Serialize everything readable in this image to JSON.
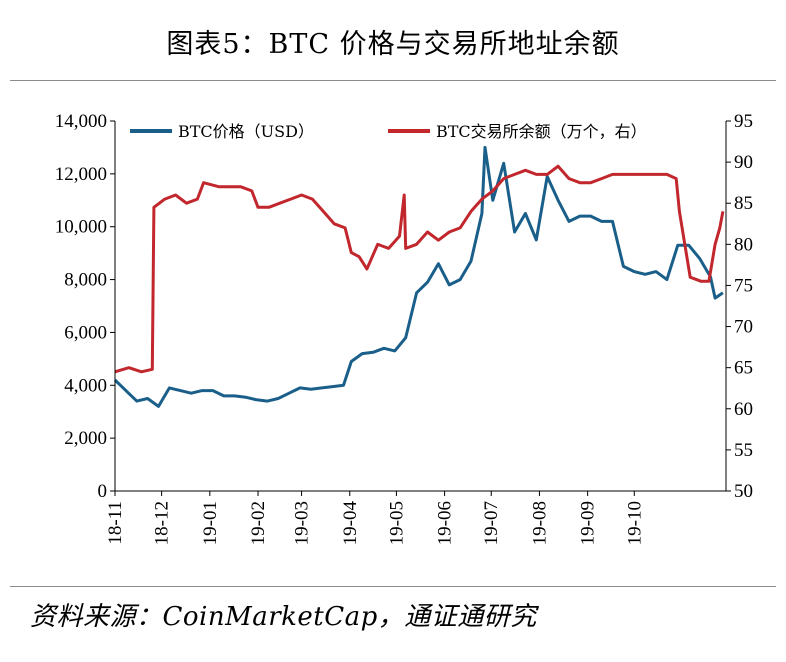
{
  "header": {
    "title": "图表5：BTC 价格与交易所地址余额"
  },
  "footer": {
    "source": "资料来源：CoinMarketCap，通证通研究"
  },
  "colors": {
    "price": "#1a5f8a",
    "balance": "#c1272d",
    "axis": "#000000"
  },
  "chart_data": {
    "type": "line",
    "title": "图表5：BTC 价格与交易所地址余额",
    "x_tick_labels": [
      "18-11",
      "18-12",
      "19-01",
      "19-02",
      "19-03",
      "19-04",
      "19-05",
      "19-06",
      "19-07",
      "19-08",
      "19-09",
      "19-10"
    ],
    "ylim_left": [
      0,
      14000
    ],
    "yticks_left": [
      "0",
      "2,000",
      "4,000",
      "6,000",
      "8,000",
      "10,000",
      "12,000",
      "14,000"
    ],
    "ylim_right": [
      50,
      95
    ],
    "yticks_right": [
      "50",
      "55",
      "60",
      "65",
      "70",
      "75",
      "80",
      "85",
      "90",
      "95"
    ],
    "legend_position": "top",
    "grid": false,
    "series": [
      {
        "name": "BTC价格（USD）",
        "axis": "left",
        "color": "#1a5f8a",
        "points": [
          [
            "2018-11-01",
            4200
          ],
          [
            "2018-11-08",
            3800
          ],
          [
            "2018-11-15",
            3400
          ],
          [
            "2018-11-22",
            3500
          ],
          [
            "2018-11-29",
            3200
          ],
          [
            "2018-12-06",
            3900
          ],
          [
            "2018-12-13",
            3800
          ],
          [
            "2018-12-20",
            3700
          ],
          [
            "2018-12-27",
            3800
          ],
          [
            "2019-01-03",
            3800
          ],
          [
            "2019-01-10",
            3600
          ],
          [
            "2019-01-17",
            3600
          ],
          [
            "2019-01-24",
            3550
          ],
          [
            "2019-01-31",
            3450
          ],
          [
            "2019-02-07",
            3400
          ],
          [
            "2019-02-14",
            3500
          ],
          [
            "2019-02-21",
            3700
          ],
          [
            "2019-02-28",
            3900
          ],
          [
            "2019-03-07",
            3850
          ],
          [
            "2019-03-14",
            3900
          ],
          [
            "2019-03-21",
            3950
          ],
          [
            "2019-03-28",
            4000
          ],
          [
            "2019-04-02",
            4900
          ],
          [
            "2019-04-09",
            5200
          ],
          [
            "2019-04-16",
            5250
          ],
          [
            "2019-04-23",
            5400
          ],
          [
            "2019-04-30",
            5300
          ],
          [
            "2019-05-07",
            5800
          ],
          [
            "2019-05-14",
            7500
          ],
          [
            "2019-05-21",
            7900
          ],
          [
            "2019-05-28",
            8600
          ],
          [
            "2019-06-04",
            7800
          ],
          [
            "2019-06-11",
            8000
          ],
          [
            "2019-06-18",
            8700
          ],
          [
            "2019-06-25",
            10500
          ],
          [
            "2019-06-27",
            13000
          ],
          [
            "2019-07-02",
            11000
          ],
          [
            "2019-07-09",
            12400
          ],
          [
            "2019-07-16",
            9800
          ],
          [
            "2019-07-23",
            10500
          ],
          [
            "2019-07-30",
            9500
          ],
          [
            "2019-08-06",
            11900
          ],
          [
            "2019-08-13",
            11000
          ],
          [
            "2019-08-20",
            10200
          ],
          [
            "2019-08-27",
            10400
          ],
          [
            "2019-09-03",
            10400
          ],
          [
            "2019-09-10",
            10200
          ],
          [
            "2019-09-17",
            10200
          ],
          [
            "2019-09-24",
            8500
          ],
          [
            "2019-10-01",
            8300
          ],
          [
            "2019-10-08",
            8200
          ],
          [
            "2019-10-15",
            8300
          ],
          [
            "2019-10-22",
            8000
          ],
          [
            "2019-10-29",
            9300
          ],
          [
            "2019-11-05",
            9300
          ],
          [
            "2019-11-12",
            8800
          ],
          [
            "2019-11-19",
            8100
          ],
          [
            "2019-11-22",
            7300
          ],
          [
            "2019-11-27",
            7500
          ]
        ]
      },
      {
        "name": "BTC交易所余额（万个，右）",
        "axis": "right",
        "color": "#c1272d",
        "points": [
          [
            "2018-11-01",
            64.5
          ],
          [
            "2018-11-10",
            65.0
          ],
          [
            "2018-11-18",
            64.5
          ],
          [
            "2018-11-25",
            64.8
          ],
          [
            "2018-11-26",
            84.5
          ],
          [
            "2018-12-03",
            85.5
          ],
          [
            "2018-12-10",
            86.0
          ],
          [
            "2018-12-17",
            85.0
          ],
          [
            "2018-12-24",
            85.5
          ],
          [
            "2018-12-28",
            87.5
          ],
          [
            "2019-01-07",
            87.0
          ],
          [
            "2019-01-14",
            87.0
          ],
          [
            "2019-01-21",
            87.0
          ],
          [
            "2019-01-28",
            86.5
          ],
          [
            "2019-02-01",
            84.5
          ],
          [
            "2019-02-08",
            84.5
          ],
          [
            "2019-02-15",
            85.0
          ],
          [
            "2019-02-22",
            85.5
          ],
          [
            "2019-03-01",
            86.0
          ],
          [
            "2019-03-08",
            85.5
          ],
          [
            "2019-03-15",
            84.0
          ],
          [
            "2019-03-22",
            82.5
          ],
          [
            "2019-03-29",
            82.0
          ],
          [
            "2019-04-02",
            79.0
          ],
          [
            "2019-04-07",
            78.5
          ],
          [
            "2019-04-12",
            77.0
          ],
          [
            "2019-04-19",
            80.0
          ],
          [
            "2019-04-26",
            79.5
          ],
          [
            "2019-05-03",
            81.0
          ],
          [
            "2019-05-06",
            86.0
          ],
          [
            "2019-05-07",
            79.5
          ],
          [
            "2019-05-14",
            80.0
          ],
          [
            "2019-05-21",
            81.5
          ],
          [
            "2019-05-28",
            80.5
          ],
          [
            "2019-06-04",
            81.5
          ],
          [
            "2019-06-11",
            82.0
          ],
          [
            "2019-06-18",
            84.0
          ],
          [
            "2019-06-25",
            85.5
          ],
          [
            "2019-07-02",
            86.5
          ],
          [
            "2019-07-09",
            88.0
          ],
          [
            "2019-07-16",
            88.5
          ],
          [
            "2019-07-23",
            89.0
          ],
          [
            "2019-07-30",
            88.5
          ],
          [
            "2019-08-06",
            88.5
          ],
          [
            "2019-08-13",
            89.5
          ],
          [
            "2019-08-20",
            88.0
          ],
          [
            "2019-08-27",
            87.5
          ],
          [
            "2019-09-03",
            87.5
          ],
          [
            "2019-09-10",
            88.0
          ],
          [
            "2019-09-17",
            88.5
          ],
          [
            "2019-09-24",
            88.5
          ],
          [
            "2019-10-01",
            88.5
          ],
          [
            "2019-10-08",
            88.5
          ],
          [
            "2019-10-15",
            88.5
          ],
          [
            "2019-10-22",
            88.5
          ],
          [
            "2019-10-28",
            88.0
          ],
          [
            "2019-10-30",
            84.0
          ],
          [
            "2019-11-06",
            76.0
          ],
          [
            "2019-11-13",
            75.5
          ],
          [
            "2019-11-18",
            75.5
          ],
          [
            "2019-11-22",
            80.0
          ],
          [
            "2019-11-25",
            82.0
          ],
          [
            "2019-11-27",
            84.0
          ]
        ]
      }
    ]
  }
}
